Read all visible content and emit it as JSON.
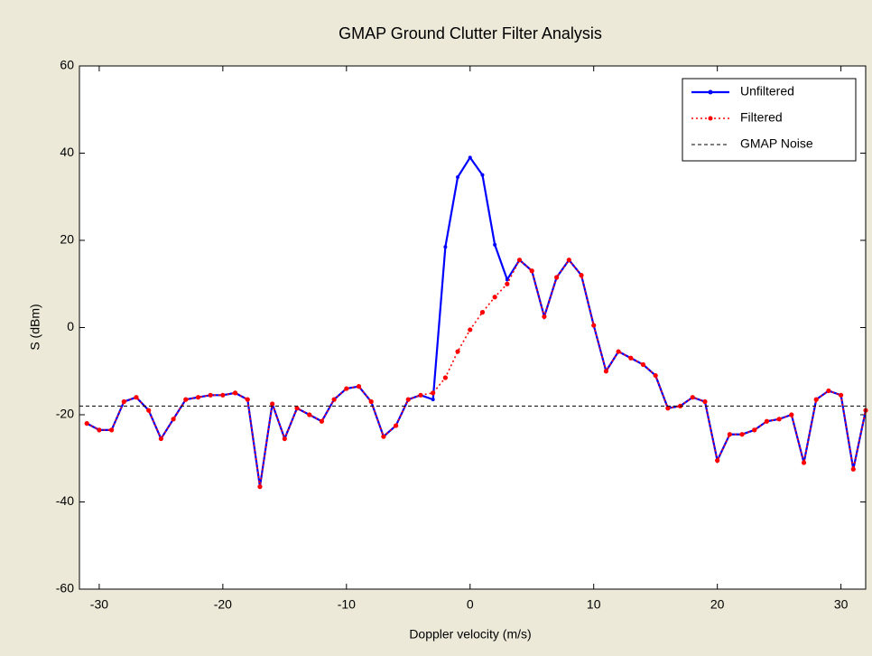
{
  "chart_data": {
    "type": "line",
    "title": "GMAP Ground Clutter Filter Analysis",
    "xlabel": "Doppler velocity (m/s)",
    "ylabel": "S (dBm)",
    "x": [
      -31,
      -30,
      -29,
      -28,
      -27,
      -26,
      -25,
      -24,
      -23,
      -22,
      -21,
      -20,
      -19,
      -18,
      -17,
      -16,
      -15,
      -14,
      -13,
      -12,
      -11,
      -10,
      -9,
      -8,
      -7,
      -6,
      -5,
      -4,
      -3,
      -2,
      -1,
      0,
      1,
      2,
      3,
      4,
      5,
      6,
      7,
      8,
      9,
      10,
      11,
      12,
      13,
      14,
      15,
      16,
      17,
      18,
      19,
      20,
      21,
      22,
      23,
      24,
      25,
      26,
      27,
      28,
      29,
      30,
      31,
      32
    ],
    "series": [
      {
        "name": "Unfiltered",
        "color": "#0000ff",
        "style": "solid",
        "values": [
          -22,
          -23.5,
          -23.5,
          -17,
          -16,
          -19,
          -25.5,
          -21,
          -16.5,
          -16,
          -15.5,
          -15.5,
          -15,
          -16.5,
          -36.5,
          -17.5,
          -25.5,
          -18.5,
          -20,
          -21.5,
          -16.5,
          -14,
          -13.5,
          -17,
          -25,
          -22.5,
          -16.5,
          -15.5,
          -16.5,
          18.5,
          34.5,
          39,
          35,
          19,
          11,
          15.5,
          13,
          2.5,
          11.5,
          15.5,
          12,
          0.5,
          -10,
          -5.5,
          -7,
          -8.5,
          -11,
          -18.5,
          -18,
          -16,
          -17,
          -30.5,
          -24.5,
          -24.5,
          -23.5,
          -21.5,
          -21,
          -20,
          -31,
          -16.5,
          -14.5,
          -15.5,
          -32.5,
          -19
        ]
      },
      {
        "name": "Filtered",
        "color": "#ff0000",
        "style": "dotted",
        "values": [
          -22,
          -23.5,
          -23.5,
          -17,
          -16,
          -19,
          -25.5,
          -21,
          -16.5,
          -16,
          -15.5,
          -15.5,
          -15,
          -16.5,
          -36.5,
          -17.5,
          -25.5,
          -18.5,
          -20,
          -21.5,
          -16.5,
          -14,
          -13.5,
          -17,
          -25,
          -22.5,
          -16.5,
          -15.5,
          -15,
          -11.5,
          -5.5,
          -0.5,
          3.5,
          7,
          10,
          15.5,
          13,
          2.5,
          11.5,
          15.5,
          12,
          0.5,
          -10,
          -5.5,
          -7,
          -8.5,
          -11,
          -18.5,
          -18,
          -16,
          -17,
          -30.5,
          -24.5,
          -24.5,
          -23.5,
          -21.5,
          -21,
          -20,
          -31,
          -16.5,
          -14.5,
          -15.5,
          -32.5,
          -19
        ]
      },
      {
        "name": "GMAP Noise",
        "color": "#000000",
        "style": "dashed",
        "y": -18
      }
    ],
    "xlim": [
      -31.6,
      32
    ],
    "ylim": [
      -60,
      60
    ],
    "xticks": [
      -30,
      -20,
      -10,
      0,
      10,
      20,
      30
    ],
    "yticks": [
      -60,
      -40,
      -20,
      0,
      20,
      40,
      60
    ],
    "legend": "upper right"
  }
}
